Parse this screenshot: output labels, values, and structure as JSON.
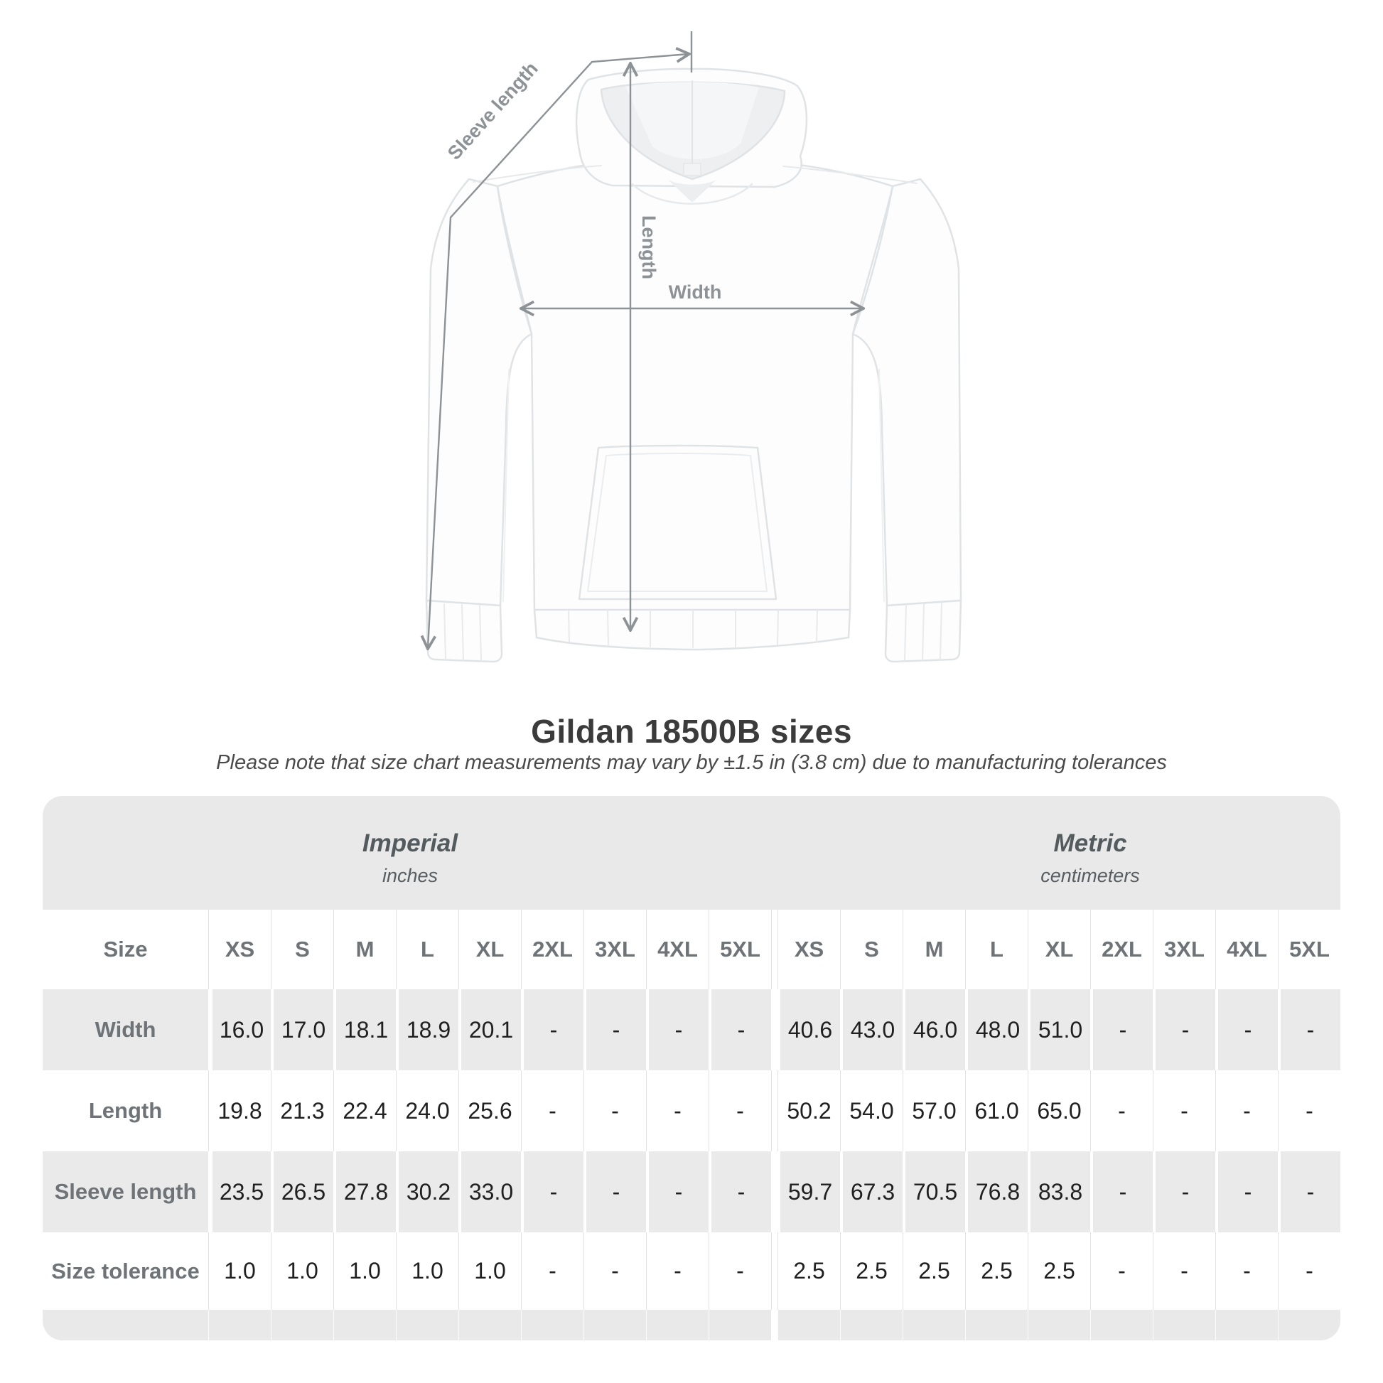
{
  "diagram": {
    "labels": {
      "sleeve_length": "Sleeve length",
      "length": "Length",
      "width": "Width"
    },
    "annotation_color": "#8d9296"
  },
  "title": "Gildan 18500B sizes",
  "subtitle": "Please note that size chart measurements may vary by ±1.5 in (3.8 cm) due to manufacturing tolerances",
  "table": {
    "size_header": "Size",
    "sections": [
      {
        "name": "Imperial",
        "unit": "inches"
      },
      {
        "name": "Metric",
        "unit": "centimeters"
      }
    ],
    "sizes": [
      "XS",
      "S",
      "M",
      "L",
      "XL",
      "2XL",
      "3XL",
      "4XL",
      "5XL"
    ],
    "rows": [
      {
        "label": "Width",
        "imperial": [
          "16.0",
          "17.0",
          "18.1",
          "18.9",
          "20.1",
          "-",
          "-",
          "-",
          "-"
        ],
        "metric": [
          "40.6",
          "43.0",
          "46.0",
          "48.0",
          "51.0",
          "-",
          "-",
          "-",
          "-"
        ]
      },
      {
        "label": "Length",
        "imperial": [
          "19.8",
          "21.3",
          "22.4",
          "24.0",
          "25.6",
          "-",
          "-",
          "-",
          "-"
        ],
        "metric": [
          "50.2",
          "54.0",
          "57.0",
          "61.0",
          "65.0",
          "-",
          "-",
          "-",
          "-"
        ]
      },
      {
        "label": "Sleeve length",
        "imperial": [
          "23.5",
          "26.5",
          "27.8",
          "30.2",
          "33.0",
          "-",
          "-",
          "-",
          "-"
        ],
        "metric": [
          "59.7",
          "67.3",
          "70.5",
          "76.8",
          "83.8",
          "-",
          "-",
          "-",
          "-"
        ]
      },
      {
        "label": "Size tolerance",
        "imperial": [
          "1.0",
          "1.0",
          "1.0",
          "1.0",
          "1.0",
          "-",
          "-",
          "-",
          "-"
        ],
        "metric": [
          "2.5",
          "2.5",
          "2.5",
          "2.5",
          "2.5",
          "-",
          "-",
          "-",
          "-"
        ]
      }
    ]
  },
  "colors": {
    "table_band": "#e9e9e9",
    "row_stripe": "#eaeaea",
    "label_text": "#6d7377",
    "value_text": "#202020",
    "title_text": "#3b3b3b",
    "annotation": "#8d9296"
  }
}
